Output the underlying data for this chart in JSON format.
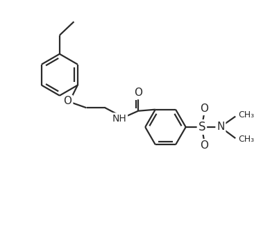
{
  "background_color": "#ffffff",
  "line_color": "#2a2a2a",
  "line_width": 1.6,
  "font_size": 10,
  "figsize": [
    3.89,
    3.24
  ],
  "dpi": 100,
  "xlim": [
    0,
    9.5
  ],
  "ylim": [
    0,
    8.5
  ]
}
